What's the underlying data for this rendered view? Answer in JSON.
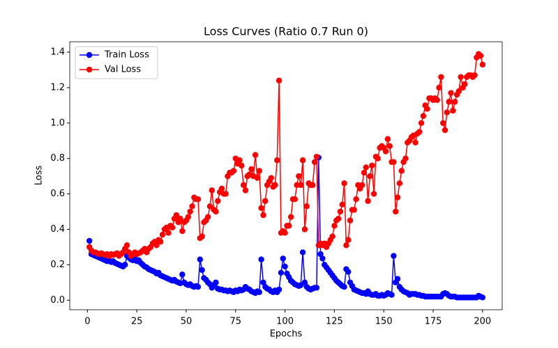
{
  "chart_data": {
    "type": "line",
    "title": "Loss Curves (Ratio 0.7 Run 0)",
    "xlabel": "Epochs",
    "ylabel": "Loss",
    "x": [
      1,
      2,
      3,
      4,
      5,
      6,
      7,
      8,
      9,
      10,
      11,
      12,
      13,
      14,
      15,
      16,
      17,
      18,
      19,
      20,
      21,
      22,
      23,
      24,
      25,
      26,
      27,
      28,
      29,
      30,
      31,
      32,
      33,
      34,
      35,
      36,
      37,
      38,
      39,
      40,
      41,
      42,
      43,
      44,
      45,
      46,
      47,
      48,
      49,
      50,
      51,
      52,
      53,
      54,
      55,
      56,
      57,
      58,
      59,
      60,
      61,
      62,
      63,
      64,
      65,
      66,
      67,
      68,
      69,
      70,
      71,
      72,
      73,
      74,
      75,
      76,
      77,
      78,
      79,
      80,
      81,
      82,
      83,
      84,
      85,
      86,
      87,
      88,
      89,
      90,
      91,
      92,
      93,
      94,
      95,
      96,
      97,
      98,
      99,
      100,
      101,
      102,
      103,
      104,
      105,
      106,
      107,
      108,
      109,
      110,
      111,
      112,
      113,
      114,
      115,
      116,
      117,
      118,
      119,
      120,
      121,
      122,
      123,
      124,
      125,
      126,
      127,
      128,
      129,
      130,
      131,
      132,
      133,
      134,
      135,
      136,
      137,
      138,
      139,
      140,
      141,
      142,
      143,
      144,
      145,
      146,
      147,
      148,
      149,
      150,
      151,
      152,
      153,
      154,
      155,
      156,
      157,
      158,
      159,
      160,
      161,
      162,
      163,
      164,
      165,
      166,
      167,
      168,
      169,
      170,
      171,
      172,
      173,
      174,
      175,
      176,
      177,
      178,
      179,
      180,
      181,
      182,
      183,
      184,
      185,
      186,
      187,
      188,
      189,
      190,
      191,
      192,
      193,
      194,
      195,
      196,
      197,
      198,
      199,
      200
    ],
    "series": [
      {
        "name": "Train Loss",
        "color": "#0000ff",
        "values": [
          0.335,
          0.26,
          0.255,
          0.25,
          0.245,
          0.24,
          0.235,
          0.23,
          0.225,
          0.22,
          0.225,
          0.215,
          0.22,
          0.21,
          0.205,
          0.2,
          0.195,
          0.19,
          0.2,
          0.25,
          0.24,
          0.23,
          0.225,
          0.245,
          0.22,
          0.225,
          0.21,
          0.2,
          0.19,
          0.185,
          0.175,
          0.17,
          0.165,
          0.16,
          0.15,
          0.155,
          0.14,
          0.135,
          0.13,
          0.125,
          0.12,
          0.115,
          0.11,
          0.115,
          0.105,
          0.1,
          0.095,
          0.145,
          0.1,
          0.09,
          0.085,
          0.09,
          0.08,
          0.075,
          0.08,
          0.075,
          0.23,
          0.17,
          0.125,
          0.115,
          0.1,
          0.09,
          0.07,
          0.085,
          0.1,
          0.065,
          0.06,
          0.06,
          0.055,
          0.055,
          0.05,
          0.055,
          0.05,
          0.045,
          0.055,
          0.05,
          0.06,
          0.055,
          0.06,
          0.075,
          0.065,
          0.06,
          0.05,
          0.045,
          0.04,
          0.05,
          0.045,
          0.23,
          0.1,
          0.075,
          0.065,
          0.06,
          0.05,
          0.045,
          0.055,
          0.045,
          0.06,
          0.155,
          0.235,
          0.19,
          0.15,
          0.13,
          0.11,
          0.1,
          0.09,
          0.085,
          0.08,
          0.085,
          0.27,
          0.1,
          0.075,
          0.065,
          0.06,
          0.065,
          0.07,
          0.07,
          0.805,
          0.26,
          0.235,
          0.2,
          0.185,
          0.17,
          0.155,
          0.14,
          0.125,
          0.11,
          0.1,
          0.09,
          0.08,
          0.075,
          0.175,
          0.16,
          0.1,
          0.08,
          0.06,
          0.055,
          0.05,
          0.045,
          0.04,
          0.04,
          0.035,
          0.05,
          0.035,
          0.03,
          0.03,
          0.035,
          0.025,
          0.025,
          0.03,
          0.025,
          0.03,
          0.04,
          0.035,
          0.03,
          0.25,
          0.1,
          0.12,
          0.075,
          0.06,
          0.05,
          0.045,
          0.04,
          0.03,
          0.035,
          0.035,
          0.035,
          0.03,
          0.03,
          0.025,
          0.025,
          0.02,
          0.02,
          0.02,
          0.02,
          0.02,
          0.02,
          0.02,
          0.02,
          0.02,
          0.035,
          0.04,
          0.035,
          0.025,
          0.02,
          0.02,
          0.02,
          0.015,
          0.015,
          0.015,
          0.015,
          0.015,
          0.015,
          0.015,
          0.015,
          0.015,
          0.015,
          0.015,
          0.025,
          0.02,
          0.015
        ]
      },
      {
        "name": "Val Loss",
        "color": "#ff0000",
        "values": [
          0.3,
          0.28,
          0.27,
          0.27,
          0.265,
          0.26,
          0.265,
          0.26,
          0.255,
          0.26,
          0.25,
          0.26,
          0.255,
          0.26,
          0.265,
          0.25,
          0.26,
          0.27,
          0.29,
          0.31,
          0.27,
          0.25,
          0.26,
          0.27,
          0.26,
          0.265,
          0.27,
          0.28,
          0.29,
          0.27,
          0.29,
          0.3,
          0.32,
          0.33,
          0.31,
          0.34,
          0.33,
          0.37,
          0.4,
          0.41,
          0.38,
          0.42,
          0.41,
          0.46,
          0.48,
          0.44,
          0.46,
          0.39,
          0.44,
          0.45,
          0.47,
          0.5,
          0.53,
          0.58,
          0.57,
          0.57,
          0.35,
          0.36,
          0.44,
          0.45,
          0.47,
          0.53,
          0.62,
          0.51,
          0.5,
          0.56,
          0.61,
          0.63,
          0.6,
          0.6,
          0.7,
          0.72,
          0.72,
          0.73,
          0.8,
          0.77,
          0.79,
          0.76,
          0.65,
          0.62,
          0.7,
          0.71,
          0.74,
          0.7,
          0.82,
          0.69,
          0.73,
          0.52,
          0.48,
          0.56,
          0.65,
          0.67,
          0.69,
          0.64,
          0.65,
          0.79,
          1.24,
          0.38,
          0.39,
          0.38,
          0.42,
          0.42,
          0.47,
          0.57,
          0.57,
          0.65,
          0.7,
          0.65,
          0.79,
          0.4,
          0.53,
          0.66,
          0.65,
          0.65,
          0.78,
          0.81,
          0.31,
          0.32,
          0.31,
          0.32,
          0.3,
          0.32,
          0.34,
          0.36,
          0.42,
          0.45,
          0.46,
          0.5,
          0.54,
          0.66,
          0.31,
          0.34,
          0.45,
          0.51,
          0.51,
          0.57,
          0.65,
          0.63,
          0.65,
          0.72,
          0.75,
          0.56,
          0.7,
          0.76,
          0.6,
          0.81,
          0.8,
          0.86,
          0.87,
          0.86,
          0.84,
          0.91,
          0.87,
          0.78,
          0.78,
          0.5,
          0.58,
          0.66,
          0.73,
          0.78,
          0.8,
          0.89,
          0.9,
          0.92,
          0.93,
          0.89,
          0.94,
          0.95,
          1.0,
          1.04,
          1.1,
          1.08,
          1.14,
          1.14,
          1.13,
          1.14,
          1.13,
          1.2,
          1.26,
          1.0,
          0.96,
          1.06,
          1.12,
          1.17,
          1.07,
          1.12,
          1.16,
          1.18,
          1.26,
          1.2,
          1.22,
          1.26,
          1.27,
          1.27,
          1.26,
          1.27,
          1.37,
          1.39,
          1.38,
          1.33
        ]
      }
    ],
    "xlim": [
      -8.95,
      209.95
    ],
    "xticks": [
      0,
      25,
      50,
      75,
      100,
      125,
      150,
      175,
      200
    ],
    "ylim": [
      -0.054,
      1.459
    ],
    "yticks": [
      {
        "value": 0,
        "label": "0.0"
      },
      0.2,
      0.4,
      0.6,
      0.8,
      {
        "value": 1,
        "label": "1.0"
      },
      1.2,
      1.4
    ],
    "grid": false,
    "legend": "upper-left"
  }
}
